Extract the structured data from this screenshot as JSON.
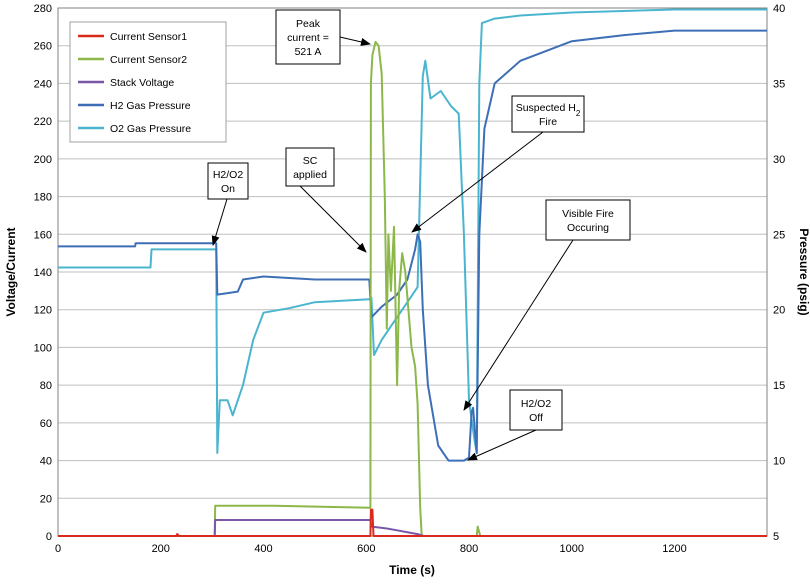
{
  "chart_data": {
    "type": "line",
    "xlabel": "Time (s)",
    "ylabel": "Voltage/Current",
    "y2label": "Pressure (psig)",
    "xlim": [
      0,
      1380
    ],
    "ylim": [
      0,
      280
    ],
    "y2lim": [
      5,
      40
    ],
    "x_ticks": [
      0,
      200,
      400,
      600,
      800,
      1000,
      1200
    ],
    "y_ticks": [
      0,
      20,
      40,
      60,
      80,
      100,
      120,
      140,
      160,
      180,
      200,
      220,
      240,
      260,
      280
    ],
    "y2_ticks": [
      5,
      10,
      15,
      20,
      25,
      30,
      35,
      40
    ],
    "grid": "horizontal",
    "legend_position": "top-left",
    "series": [
      {
        "name": "Current Sensor1",
        "axis": "left",
        "color": "#d92b1c",
        "points": [
          [
            0,
            0
          ],
          [
            230,
            0
          ],
          [
            232,
            1
          ],
          [
            236,
            0
          ],
          [
            608,
            0
          ],
          [
            609,
            14
          ],
          [
            612,
            14
          ],
          [
            614,
            0
          ],
          [
            1380,
            0
          ]
        ]
      },
      {
        "name": "Current Sensor2",
        "axis": "left",
        "color": "#8cb84a",
        "points": [
          [
            0,
            0
          ],
          [
            305,
            0
          ],
          [
            306,
            16
          ],
          [
            420,
            16
          ],
          [
            608,
            15
          ],
          [
            609,
            240
          ],
          [
            612,
            255
          ],
          [
            618,
            262
          ],
          [
            624,
            260
          ],
          [
            630,
            245
          ],
          [
            636,
            180
          ],
          [
            640,
            110
          ],
          [
            643,
            160
          ],
          [
            648,
            130
          ],
          [
            654,
            164
          ],
          [
            660,
            80
          ],
          [
            664,
            130
          ],
          [
            670,
            150
          ],
          [
            676,
            140
          ],
          [
            682,
            120
          ],
          [
            688,
            100
          ],
          [
            695,
            90
          ],
          [
            700,
            70
          ],
          [
            705,
            15
          ],
          [
            708,
            0
          ],
          [
            815,
            0
          ],
          [
            817,
            5
          ],
          [
            822,
            0
          ],
          [
            1380,
            0
          ]
        ]
      },
      {
        "name": "Stack Voltage",
        "axis": "left",
        "color": "#7a57a7",
        "points": [
          [
            0,
            0
          ],
          [
            305,
            0
          ],
          [
            306,
            8.5
          ],
          [
            608,
            8.5
          ],
          [
            610,
            5
          ],
          [
            640,
            4
          ],
          [
            660,
            3
          ],
          [
            700,
            1
          ],
          [
            712,
            0
          ],
          [
            1380,
            0
          ]
        ]
      },
      {
        "name": "H2 Gas Pressure",
        "axis": "right",
        "color": "#3e6fb6",
        "points": [
          [
            0,
            24.2
          ],
          [
            150,
            24.2
          ],
          [
            151,
            24.4
          ],
          [
            308,
            24.4
          ],
          [
            310,
            21
          ],
          [
            330,
            21.1
          ],
          [
            350,
            21.2
          ],
          [
            360,
            22
          ],
          [
            400,
            22.2
          ],
          [
            500,
            22
          ],
          [
            606,
            22
          ],
          [
            610,
            19.5
          ],
          [
            630,
            20.2
          ],
          [
            660,
            21
          ],
          [
            680,
            22
          ],
          [
            695,
            24
          ],
          [
            700,
            25
          ],
          [
            705,
            24.5
          ],
          [
            710,
            20
          ],
          [
            720,
            15
          ],
          [
            740,
            11
          ],
          [
            760,
            10
          ],
          [
            790,
            10
          ],
          [
            800,
            10.2
          ],
          [
            805,
            13.2
          ],
          [
            808,
            13.5
          ],
          [
            815,
            10.5
          ],
          [
            820,
            25
          ],
          [
            830,
            32
          ],
          [
            850,
            35
          ],
          [
            900,
            36.5
          ],
          [
            1000,
            37.8
          ],
          [
            1100,
            38.2
          ],
          [
            1200,
            38.5
          ],
          [
            1380,
            38.5
          ]
        ]
      },
      {
        "name": "O2 Gas Pressure",
        "axis": "right",
        "color": "#4bb5ce",
        "points": [
          [
            0,
            22.8
          ],
          [
            180,
            22.8
          ],
          [
            182,
            24
          ],
          [
            300,
            24
          ],
          [
            308,
            24
          ],
          [
            310,
            10.5
          ],
          [
            315,
            14
          ],
          [
            330,
            14
          ],
          [
            340,
            13
          ],
          [
            360,
            15
          ],
          [
            380,
            18
          ],
          [
            400,
            19.8
          ],
          [
            450,
            20.1
          ],
          [
            500,
            20.5
          ],
          [
            606,
            20.7
          ],
          [
            610,
            20.8
          ],
          [
            615,
            17
          ],
          [
            630,
            18
          ],
          [
            650,
            19
          ],
          [
            680,
            20.5
          ],
          [
            700,
            21.5
          ],
          [
            710,
            35.5
          ],
          [
            715,
            36.5
          ],
          [
            725,
            34
          ],
          [
            745,
            34.5
          ],
          [
            765,
            33.5
          ],
          [
            780,
            33
          ],
          [
            790,
            25
          ],
          [
            800,
            14
          ],
          [
            810,
            11.5
          ],
          [
            815,
            10.5
          ],
          [
            820,
            35
          ],
          [
            825,
            39
          ],
          [
            850,
            39.3
          ],
          [
            900,
            39.5
          ],
          [
            1000,
            39.7
          ],
          [
            1200,
            39.9
          ],
          [
            1380,
            39.9
          ]
        ]
      }
    ],
    "annotations": [
      {
        "id": "h2o2-on",
        "lines": [
          "H2/O2",
          "On"
        ]
      },
      {
        "id": "sc-applied",
        "lines": [
          "SC",
          "applied"
        ]
      },
      {
        "id": "peak-current",
        "lines": [
          "Peak",
          "current =",
          "521 A"
        ]
      },
      {
        "id": "suspected-fire",
        "lines": [
          "Suspected H",
          "Fire"
        ],
        "subscript": "2"
      },
      {
        "id": "visible-fire",
        "lines": [
          "Visible Fire",
          "Occuring"
        ]
      },
      {
        "id": "h2o2-off",
        "lines": [
          "H2/O2",
          "Off"
        ]
      }
    ]
  }
}
